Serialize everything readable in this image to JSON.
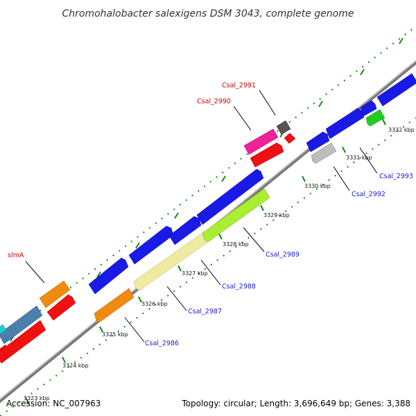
{
  "title": "Chromohalobacter salexigens DSM 3043, complete genome",
  "footer": {
    "accession": "Accession: NC_007963",
    "summary": "Topology: circular; Length: 3,696,649 bp; Genes: 3,388"
  },
  "colors": {
    "backbone": "#808080",
    "tick": "#118811",
    "forward_label": "#cc0000",
    "reverse_label": "#1a1acc",
    "blue_gene": "#1a1ae6",
    "orange_gene": "#f08a10",
    "red_gene": "#ee1111",
    "steel_gene": "#4a7fae",
    "magenta_gene": "#ee2299",
    "grey_gene": "#555555",
    "silver_gene": "#bdbdbd",
    "green_gene": "#22cc22",
    "khaki_gene": "#eeeaa0",
    "lime_gene": "#aaee33",
    "cyan_gene": "#22cccc"
  },
  "ticks": [
    {
      "label": "3323 kbp"
    },
    {
      "label": "3324 kbp"
    },
    {
      "label": "3325 kbp"
    },
    {
      "label": "3326 kbp"
    },
    {
      "label": "3327 kbp"
    },
    {
      "label": "3328 kbp"
    },
    {
      "label": "3329 kbp"
    },
    {
      "label": "3330 kbp"
    },
    {
      "label": "3331 kbp"
    },
    {
      "label": "3332 kbp"
    }
  ],
  "forward_labels": [
    "slmA",
    "Csal_2990",
    "Csal_2991"
  ],
  "reverse_labels": [
    "Csal_2986",
    "Csal_2987",
    "Csal_2988",
    "Csal_2989",
    "Csal_2992",
    "Csal_2993"
  ],
  "genes": [
    {
      "color": "red_gene"
    },
    {
      "color": "steel_gene"
    },
    {
      "color": "cyan_gene"
    },
    {
      "color": "red_gene"
    },
    {
      "color": "orange_gene"
    },
    {
      "color": "red_gene"
    },
    {
      "color": "blue_gene"
    },
    {
      "color": "orange_gene"
    },
    {
      "color": "blue_gene"
    },
    {
      "color": "khaki_gene"
    },
    {
      "color": "blue_gene"
    },
    {
      "color": "lime_gene"
    },
    {
      "color": "blue_gene"
    },
    {
      "color": "magenta_gene"
    },
    {
      "color": "red_gene"
    },
    {
      "color": "grey_gene"
    },
    {
      "color": "red_gene"
    },
    {
      "color": "blue_gene"
    },
    {
      "color": "silver_gene"
    },
    {
      "color": "blue_gene"
    },
    {
      "color": "blue_gene"
    },
    {
      "color": "green_gene"
    },
    {
      "color": "blue_gene"
    }
  ]
}
